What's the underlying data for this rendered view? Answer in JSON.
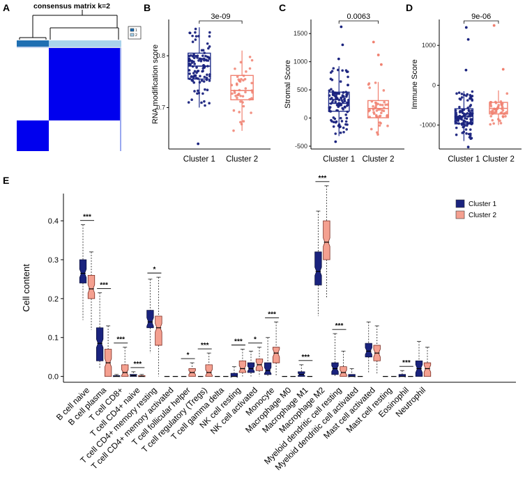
{
  "panel_labels": [
    "A",
    "B",
    "C",
    "D",
    "E"
  ],
  "heatmap": {
    "title": "consensus matrix k=2",
    "legend": [
      "1",
      "2"
    ],
    "colors": {
      "c1": "#1f6fb2",
      "c2": "#a9d3ec",
      "fill": "#0000ee",
      "bg": "#ffffff"
    }
  },
  "colors": {
    "cluster1": "#1a237e",
    "cluster1_box": "#1f2d8a",
    "cluster2": "#f08070",
    "cluster2_fill": "#f4a090"
  },
  "chart_data": [
    {
      "panel": "B",
      "type": "box",
      "ylabel": "RNA modification score",
      "categories": [
        "Cluster 1",
        "Cluster 2"
      ],
      "ylim": [
        0.62,
        0.87
      ],
      "yticks": [
        0.7,
        0.8
      ],
      "ytick_labels": [
        "0.7",
        "0.8"
      ],
      "pvalue": "3e-09",
      "boxes": [
        {
          "min": 0.7,
          "q1": 0.755,
          "median": 0.78,
          "q3": 0.805,
          "max": 0.855
        },
        {
          "min": 0.655,
          "q1": 0.715,
          "median": 0.733,
          "q3": 0.762,
          "max": 0.81
        }
      ],
      "outliers": [
        [
          0.63
        ],
        []
      ]
    },
    {
      "panel": "C",
      "type": "box",
      "ylabel": "Stromal Score",
      "categories": [
        "Cluster 1",
        "Cluster 2"
      ],
      "ylim": [
        -550,
        1750
      ],
      "yticks": [
        -500,
        0,
        500,
        1000,
        1500
      ],
      "ytick_labels": [
        "-500",
        "0",
        "500",
        "1000",
        "1500"
      ],
      "pvalue": "0.0063",
      "boxes": [
        {
          "min": -320,
          "q1": 120,
          "median": 260,
          "q3": 460,
          "max": 920
        },
        {
          "min": -300,
          "q1": 5,
          "median": 170,
          "q3": 310,
          "max": 640
        }
      ],
      "outliers": [
        [
          -420,
          1050,
          1300,
          1620
        ],
        [
          950,
          1120,
          1350
        ]
      ]
    },
    {
      "panel": "D",
      "type": "box",
      "ylabel": "Immune Score",
      "categories": [
        "Cluster 1",
        "Cluster 2"
      ],
      "ylim": [
        -1600,
        1650
      ],
      "yticks": [
        -1000,
        0,
        1000
      ],
      "ytick_labels": [
        "-1000",
        "0",
        "1000"
      ],
      "pvalue": "9e-06",
      "boxes": [
        {
          "min": -1400,
          "q1": -970,
          "median": -780,
          "q3": -590,
          "max": -150
        },
        {
          "min": -1000,
          "q1": -720,
          "median": -580,
          "q3": -430,
          "max": -130
        }
      ],
      "outliers": [
        [
          -1550,
          380,
          1150,
          1450
        ],
        [
          1500,
          400
        ]
      ]
    },
    {
      "panel": "E",
      "type": "box",
      "ylabel": "Cell content",
      "ylim": [
        -0.015,
        0.47
      ],
      "yticks": [
        0.0,
        0.1,
        0.2,
        0.3,
        0.4
      ],
      "ytick_labels": [
        "0.0",
        "0.1",
        "0.2",
        "0.3",
        "0.4"
      ],
      "legend": [
        "Cluster 1",
        "Cluster 2"
      ],
      "categories": [
        "B cell naive",
        "B cell plasma",
        "T cell CD8+",
        "T cell CD4+ naive",
        "T cell CD4+ memory resting",
        "T cell CD4+ memory activated",
        "T cell follicular helper",
        "T cell regulatory (Tregs)",
        "T cell gamma delta",
        "NK cell resting",
        "NK cell activated",
        "Monocyte",
        "Macrophage M0",
        "Macrophage M1",
        "Macrophage M2",
        "Myeloid dendritic cell resting",
        "Myeloid dendritic cell activated",
        "Mast cell activated",
        "Mast cell resting",
        "Eosinophil",
        "Neutrophil"
      ],
      "significance": [
        "***",
        "***",
        "***",
        "***",
        "*",
        "",
        "*",
        "***",
        "",
        "***",
        "*",
        "***",
        "",
        "***",
        "***",
        "***",
        "",
        "",
        "",
        "***",
        ""
      ],
      "series": [
        {
          "name": "Cluster 1",
          "boxes": [
            [
              0.145,
              0.24,
              0.265,
              0.3,
              0.39
            ],
            [
              0.02,
              0.04,
              0.085,
              0.125,
              0.215
            ],
            [
              0.0,
              0.0,
              0.0,
              0.002,
              0.005
            ],
            [
              0.0,
              0.0,
              0.002,
              0.005,
              0.012
            ],
            [
              0.06,
              0.125,
              0.14,
              0.17,
              0.25
            ],
            [
              0.0,
              0.0,
              0.0,
              0.0,
              0.0
            ],
            [
              0.0,
              0.0,
              0.0,
              0.0,
              0.0
            ],
            [
              0.0,
              0.0,
              0.0,
              0.0,
              0.0
            ],
            [
              0.0,
              0.0,
              0.0,
              0.0,
              0.0
            ],
            [
              0.0,
              0.0,
              0.0,
              0.008,
              0.025
            ],
            [
              0.0,
              0.01,
              0.02,
              0.035,
              0.065
            ],
            [
              0.0,
              0.005,
              0.015,
              0.035,
              0.1
            ],
            [
              0.0,
              0.0,
              0.0,
              0.0,
              0.0
            ],
            [
              0.0,
              0.0,
              0.005,
              0.012,
              0.03
            ],
            [
              0.155,
              0.235,
              0.27,
              0.32,
              0.425
            ],
            [
              0.0,
              0.005,
              0.02,
              0.035,
              0.11
            ],
            [
              0.0,
              0.0,
              0.0,
              0.005,
              0.02
            ],
            [
              0.01,
              0.05,
              0.065,
              0.085,
              0.14
            ],
            [
              0.0,
              0.0,
              0.0,
              0.0,
              0.0
            ],
            [
              0.0,
              0.0,
              0.0,
              0.005,
              0.015
            ],
            [
              0.0,
              0.0,
              0.02,
              0.04,
              0.09
            ]
          ]
        },
        {
          "name": "Cluster 2",
          "boxes": [
            [
              0.12,
              0.2,
              0.225,
              0.26,
              0.32
            ],
            [
              0.0,
              0.0,
              0.035,
              0.07,
              0.13
            ],
            [
              0.0,
              0.0,
              0.01,
              0.03,
              0.075
            ],
            [
              0.0,
              0.0,
              0.0,
              0.002,
              0.005
            ],
            [
              0.0,
              0.08,
              0.125,
              0.155,
              0.255
            ],
            [
              0.0,
              0.0,
              0.0,
              0.0,
              0.0
            ],
            [
              0.0,
              0.0,
              0.01,
              0.02,
              0.035
            ],
            [
              0.0,
              0.0,
              0.01,
              0.03,
              0.06
            ],
            [
              0.0,
              0.0,
              0.0,
              0.0,
              0.0
            ],
            [
              0.0,
              0.01,
              0.02,
              0.04,
              0.07
            ],
            [
              0.0,
              0.015,
              0.03,
              0.045,
              0.075
            ],
            [
              0.0,
              0.035,
              0.06,
              0.075,
              0.14
            ],
            [
              0.0,
              0.0,
              0.0,
              0.0,
              0.0
            ],
            [
              0.0,
              0.0,
              0.0,
              0.0,
              0.0
            ],
            [
              0.2,
              0.3,
              0.345,
              0.4,
              0.49
            ],
            [
              0.0,
              0.0,
              0.01,
              0.025,
              0.065
            ],
            [
              0.0,
              0.0,
              0.0,
              0.0,
              0.0
            ],
            [
              0.005,
              0.04,
              0.06,
              0.08,
              0.13
            ],
            [
              0.0,
              0.0,
              0.0,
              0.0,
              0.0
            ],
            [
              0.0,
              0.0,
              0.0,
              0.0,
              0.0
            ],
            [
              0.0,
              0.0,
              0.02,
              0.035,
              0.075
            ]
          ]
        }
      ]
    }
  ]
}
